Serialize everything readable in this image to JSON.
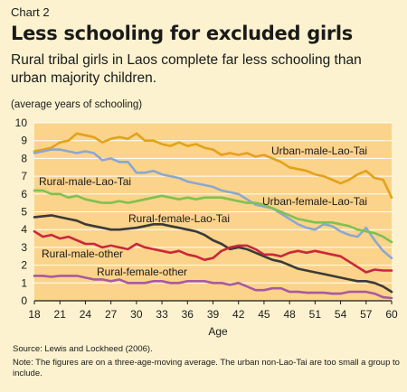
{
  "header": {
    "chart_number": "Chart 2",
    "title": "Less schooling for excluded girls",
    "subtitle": "Rural tribal girls in Laos complete far less schooling than urban majority children.",
    "unit_note": "(average years of schooling)"
  },
  "footer": {
    "source": "Source: Lewis and Lockheed (2006).",
    "note": "Note: The figures are on a three-age-moving average. The urban non-Lao-Tai are too small a group to include."
  },
  "chart_data": {
    "type": "line",
    "title": "Less schooling for excluded girls",
    "xlabel": "Age",
    "ylabel": "(average years of schooling)",
    "xlim": [
      18,
      60
    ],
    "ylim": [
      0,
      10
    ],
    "xticks": [
      18,
      21,
      24,
      27,
      30,
      33,
      36,
      39,
      42,
      45,
      48,
      51,
      54,
      57,
      60
    ],
    "yticks": [
      0,
      1,
      2,
      3,
      4,
      5,
      6,
      7,
      8,
      9,
      10
    ],
    "grid": "horizontal",
    "x": [
      18,
      19,
      20,
      21,
      22,
      23,
      24,
      25,
      26,
      27,
      28,
      29,
      30,
      31,
      32,
      33,
      34,
      35,
      36,
      37,
      38,
      39,
      40,
      41,
      42,
      43,
      44,
      45,
      46,
      47,
      48,
      49,
      50,
      51,
      52,
      53,
      54,
      55,
      56,
      57,
      58,
      59,
      60
    ],
    "series": [
      {
        "name": "Urban-male-Lao-Tai",
        "color": "#e3a21a",
        "values": [
          8.4,
          8.5,
          8.6,
          8.9,
          9.0,
          9.4,
          9.3,
          9.2,
          8.9,
          9.1,
          9.2,
          9.1,
          9.4,
          9.0,
          9.0,
          8.8,
          8.7,
          8.9,
          8.7,
          8.8,
          8.6,
          8.5,
          8.2,
          8.3,
          8.2,
          8.3,
          8.1,
          8.2,
          8.0,
          7.8,
          7.5,
          7.4,
          7.3,
          7.1,
          7.0,
          6.8,
          6.6,
          6.8,
          7.1,
          7.3,
          6.9,
          6.8,
          5.8
        ]
      },
      {
        "name": "Rural-male-Lao-Tai",
        "color": "#8aa8cf",
        "values": [
          8.3,
          8.4,
          8.5,
          8.5,
          8.4,
          8.3,
          8.4,
          8.3,
          7.9,
          8.0,
          7.8,
          7.8,
          7.2,
          7.2,
          7.3,
          7.1,
          7.0,
          6.9,
          6.7,
          6.6,
          6.5,
          6.4,
          6.2,
          6.1,
          6.0,
          5.7,
          5.4,
          5.3,
          5.2,
          4.9,
          4.6,
          4.3,
          4.1,
          4.0,
          4.3,
          4.2,
          3.9,
          3.7,
          3.6,
          4.1,
          3.4,
          2.8,
          2.4
        ]
      },
      {
        "name": "Urban-female-Lao-Tai",
        "color": "#7fc152",
        "values": [
          6.2,
          6.2,
          6.0,
          6.0,
          5.8,
          5.9,
          5.7,
          5.6,
          5.5,
          5.5,
          5.6,
          5.5,
          5.6,
          5.7,
          5.8,
          5.9,
          5.8,
          5.7,
          5.8,
          5.7,
          5.8,
          5.8,
          5.8,
          5.7,
          5.6,
          5.5,
          5.5,
          5.4,
          5.2,
          5.0,
          4.8,
          4.6,
          4.5,
          4.4,
          4.4,
          4.4,
          4.3,
          4.2,
          4.0,
          3.9,
          3.8,
          3.6,
          3.3
        ]
      },
      {
        "name": "Rural-female-Lao-Tai",
        "color": "#3a3a3a",
        "values": [
          4.7,
          4.75,
          4.8,
          4.7,
          4.6,
          4.5,
          4.3,
          4.2,
          4.1,
          4.0,
          4.0,
          4.05,
          4.1,
          4.2,
          4.3,
          4.3,
          4.2,
          4.1,
          4.0,
          3.9,
          3.7,
          3.4,
          3.2,
          2.9,
          3.0,
          2.9,
          2.7,
          2.5,
          2.3,
          2.2,
          2.0,
          1.8,
          1.7,
          1.6,
          1.5,
          1.4,
          1.3,
          1.2,
          1.1,
          1.1,
          1.0,
          0.8,
          0.5
        ]
      },
      {
        "name": "Rural-male-other",
        "color": "#c8283c",
        "values": [
          3.9,
          3.6,
          3.7,
          3.5,
          3.6,
          3.4,
          3.2,
          3.2,
          3.0,
          3.1,
          3.0,
          2.9,
          3.2,
          3.0,
          2.9,
          2.8,
          2.7,
          2.8,
          2.6,
          2.5,
          2.3,
          2.4,
          2.8,
          3.0,
          3.1,
          3.1,
          2.9,
          2.6,
          2.6,
          2.5,
          2.7,
          2.8,
          2.7,
          2.8,
          2.7,
          2.6,
          2.5,
          2.2,
          1.9,
          1.6,
          1.75,
          1.7,
          1.7
        ]
      },
      {
        "name": "Rural-female-other",
        "color": "#a85a9e",
        "values": [
          1.4,
          1.4,
          1.35,
          1.4,
          1.4,
          1.4,
          1.3,
          1.2,
          1.2,
          1.1,
          1.2,
          1.0,
          1.0,
          1.0,
          1.1,
          1.1,
          1.0,
          1.0,
          1.1,
          1.1,
          1.1,
          1.0,
          1.0,
          0.9,
          1.0,
          0.8,
          0.6,
          0.6,
          0.7,
          0.7,
          0.5,
          0.5,
          0.45,
          0.45,
          0.45,
          0.4,
          0.4,
          0.5,
          0.5,
          0.5,
          0.4,
          0.2,
          0.15
        ]
      }
    ]
  },
  "labels": {
    "urban_male_lao_tai": "Urban-male-Lao-Tai",
    "rural_male_lao_tai": "Rural-male-Lao-Tai",
    "urban_female_lao_tai": "Urban-female-Lao-Tai",
    "rural_female_lao_tai": "Rural-female-Lao-Tai",
    "rural_male_other": "Rural-male-other",
    "rural_female_other": "Rural-female-other"
  },
  "colors": {
    "page_background": "#fcf2cf",
    "plot_background": "#fbd38a",
    "gridline": "#ffffff"
  }
}
